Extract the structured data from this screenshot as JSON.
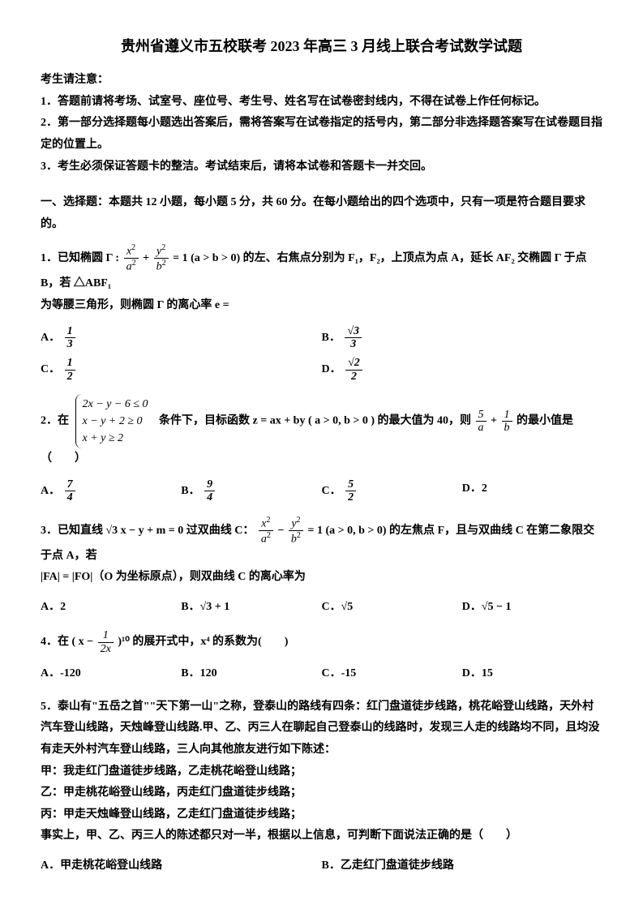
{
  "title": "贵州省遵义市五校联考 2023 年高三 3 月线上联合考试数学试题",
  "notice_head": "考生请注意：",
  "notices": [
    "1．答题前请将考场、试室号、座位号、考生号、姓名写在试卷密封线内，不得在试卷上作任何标记。",
    "2．第一部分选择题每小题选出答案后，需将答案写在试卷指定的括号内，第二部分非选择题答案写在试卷题目指定的位置上。",
    "3．考生必须保证答题卡的整洁。考试结束后，请将本试卷和答题卡一并交回。"
  ],
  "section1": "一、选择题：本题共 12 小题，每小题 5 分，共 60 分。在每小题给出的四个选项中，只有一项是符合题目要求的。",
  "q1": {
    "pre": "1．已知椭圆 Γ :",
    "eq_num1": "x",
    "eq_den1": "a",
    "eq_num2": "y",
    "eq_den2": "b",
    "mid": "= 1 (a > b > 0) 的左、右焦点分别为 F₁，F₂，上顶点为点 A，延长 AF₂ 交椭圆 Γ 于点 B，若 △ABF₁",
    "tail": "为等腰三角形，则椭圆 Γ 的离心率 e =",
    "A_num": "1",
    "A_den": "3",
    "B_num": "√3",
    "B_den": "3",
    "C_num": "1",
    "C_den": "2",
    "D_num": "√2",
    "D_den": "2"
  },
  "q2": {
    "pre": "2．在",
    "l1": "2x − y − 6 ≤ 0",
    "l2": "x − y + 2 ≥ 0",
    "l3": "x + y ≥ 2",
    "mid": " 条件下，目标函数 z = ax + by ( a > 0, b > 0 ) 的最大值为 40，则 ",
    "f1n": "5",
    "f1d": "a",
    "f2n": "1",
    "f2d": "b",
    "tail": " 的最小值是（　　）",
    "A_num": "7",
    "A_den": "4",
    "B_num": "9",
    "B_den": "4",
    "C_num": "5",
    "C_den": "2",
    "D": "D．2"
  },
  "q3": {
    "pre": "3．已知直线 √3 x − y + m = 0 过双曲线 C：",
    "eq_num1": "x",
    "eq_den1": "a",
    "eq_num2": "y",
    "eq_den2": "b",
    "mid": "= 1 (a > 0, b > 0) 的左焦点 F，且与双曲线 C 在第二象限交于点 A，若",
    "tail": "|FA| = |FO|（O 为坐标原点），则双曲线 C 的离心率为",
    "A": "A．2",
    "B": "B．√3 + 1",
    "C": "C．√5",
    "D": "D．√5 − 1"
  },
  "q4": {
    "pre": "4．在 ( x − ",
    "fn": "1",
    "fd": "2x",
    "mid": " )¹⁰ 的展开式中，x⁴ 的系数为(　　)",
    "A": "A．-120",
    "B": "B．120",
    "C": "C．-15",
    "D": "D．15"
  },
  "q5": {
    "p1": "5．泰山有\"五岳之首\"\"天下第一山\"之称，登泰山的路线有四条：红门盘道徒步线路，桃花峪登山线路，天外村汽车登山线路，天烛峰登山线路.甲、乙、丙三人在聊起自己登泰山的线路时，发现三人走的线路均不同，且均没有走天外村汽车登山线路，三人向其他旅友进行如下陈述：",
    "p2": "甲：我走红门盘道徒步线路，乙走桃花峪登山线路；",
    "p3": "乙：甲走桃花峪登山线路，丙走红门盘道徒步线路；",
    "p4": "丙：甲走天烛峰登山线路，乙走红门盘道徒步线路；",
    "p5": "事实上，甲、乙、丙三人的陈述都只对一半，根据以上信息，可判断下面说法正确的是（　　）",
    "A": "A．甲走桃花峪登山线路",
    "B": "B．乙走红门盘道徒步线路"
  }
}
